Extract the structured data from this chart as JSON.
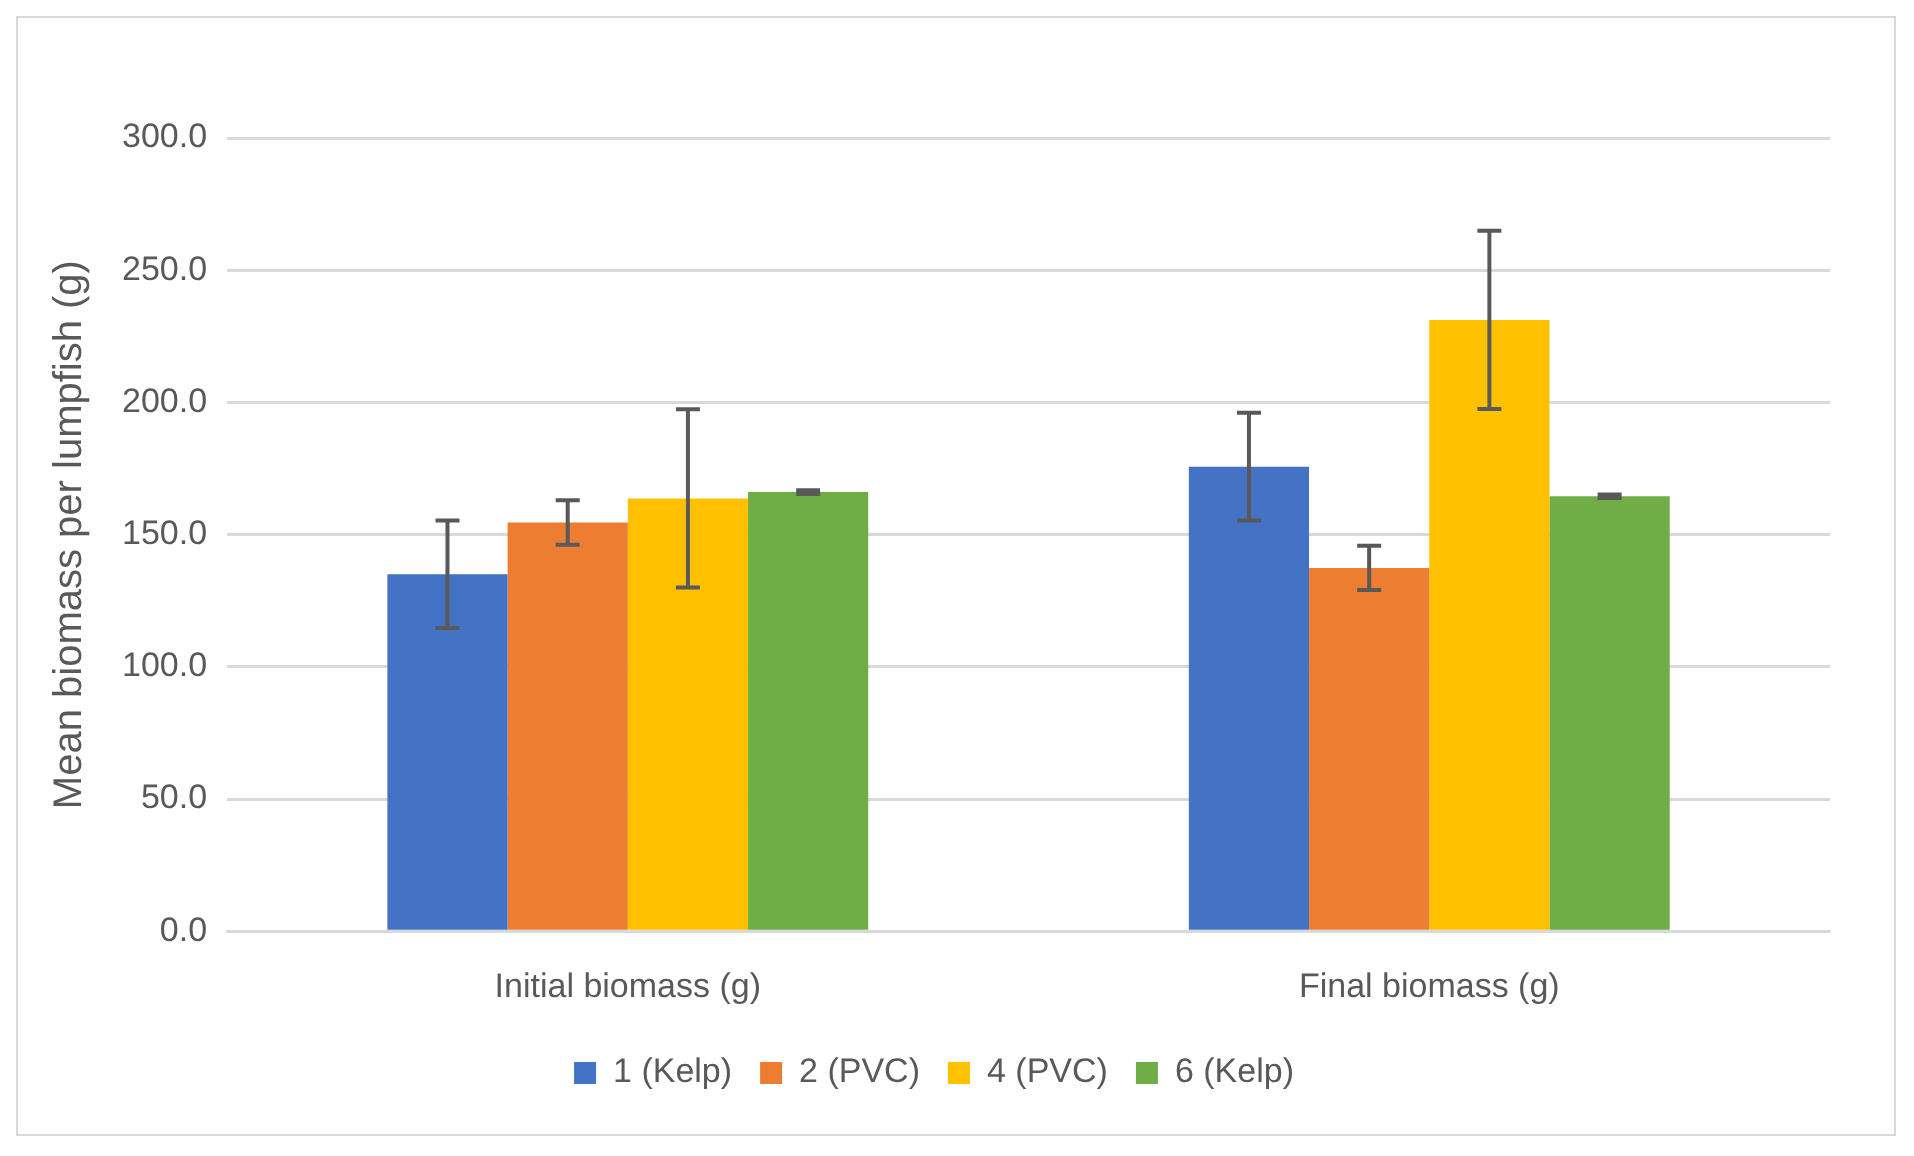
{
  "chart_data": {
    "type": "bar",
    "ylabel": "Mean biomass per lumpfish (g)",
    "categories": [
      "Initial biomass (g)",
      "Final biomass (g)"
    ],
    "series": [
      {
        "name": "1 (Kelp)",
        "color": "#4472c4",
        "values": [
          135.0,
          175.7
        ],
        "errors": [
          20.3,
          20.4
        ]
      },
      {
        "name": "2 (PVC)",
        "color": "#ed7d31",
        "values": [
          154.6,
          137.4
        ],
        "errors": [
          8.4,
          8.4
        ]
      },
      {
        "name": "4 (PVC)",
        "color": "#ffc000",
        "values": [
          163.7,
          231.2
        ],
        "errors": [
          33.7,
          33.7
        ]
      },
      {
        "name": "6 (Kelp)",
        "color": "#70ad47",
        "values": [
          166.1,
          164.5
        ],
        "errors": [
          0.7,
          0.7
        ]
      }
    ],
    "ylim": [
      0,
      300
    ],
    "yticks": [
      {
        "value": 0,
        "label": "0.0"
      },
      {
        "value": 50,
        "label": "50.0"
      },
      {
        "value": 100,
        "label": "100.0"
      },
      {
        "value": 150,
        "label": "150.0"
      },
      {
        "value": 200,
        "label": "200.0"
      },
      {
        "value": 250,
        "label": "250.0"
      },
      {
        "value": 300,
        "label": "300.0"
      }
    ],
    "grid": "y",
    "legend": "bottom"
  }
}
